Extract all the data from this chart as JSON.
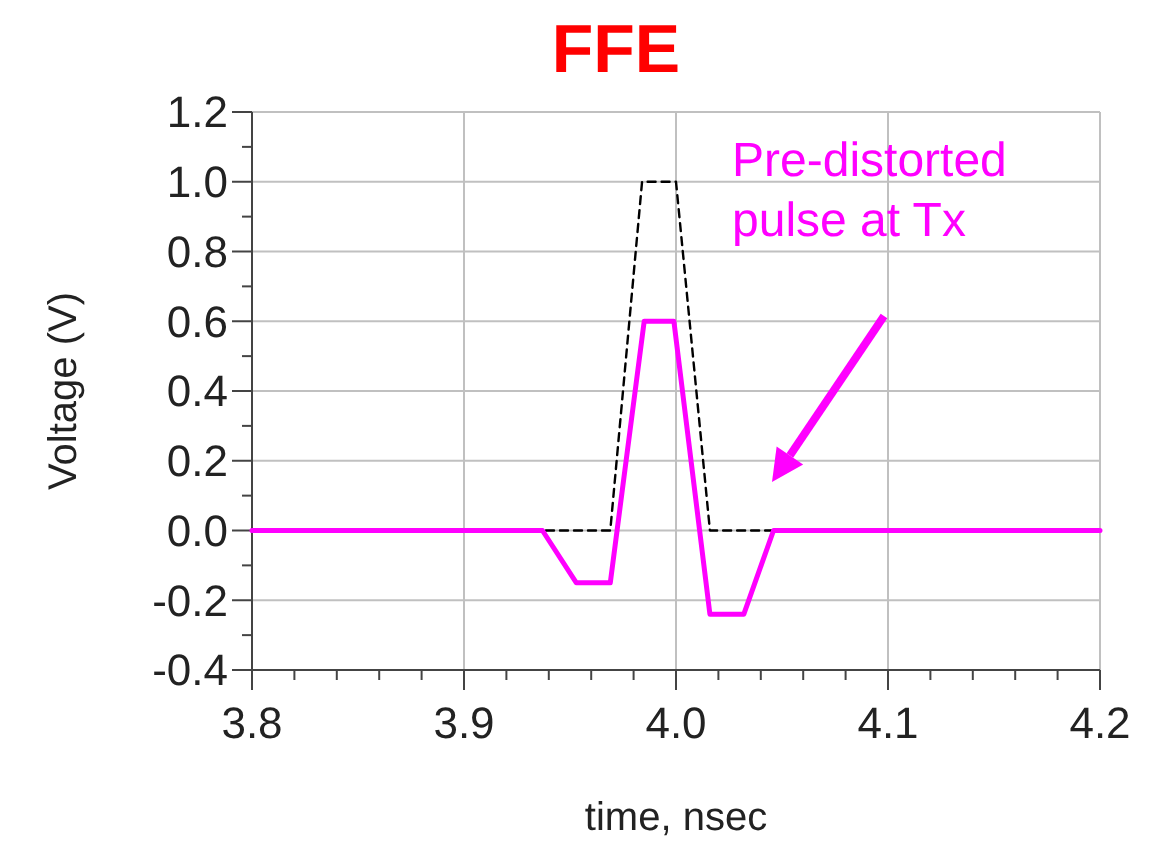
{
  "chart_data": {
    "type": "line",
    "title": "FFE",
    "xlabel": "time, nsec",
    "ylabel": "Voltage (V)",
    "xlim": [
      3.8,
      4.2
    ],
    "xticks": [
      {
        "value": 3.8,
        "label": "3.8"
      },
      {
        "value": 3.9,
        "label": "3.9"
      },
      {
        "value": 4,
        "label": "4.0"
      },
      {
        "value": 4.1,
        "label": "4.1"
      },
      {
        "value": 4.2,
        "label": "4.2"
      }
    ],
    "ylim": [
      -0.4,
      1.2
    ],
    "yticks": [
      {
        "value": -0.4,
        "label": "-0.4"
      },
      {
        "value": -0.2,
        "label": "-0.2"
      },
      {
        "value": 0,
        "label": "0.0"
      },
      {
        "value": 0.2,
        "label": "0.2"
      },
      {
        "value": 0.4,
        "label": "0.4"
      },
      {
        "value": 0.6,
        "label": "0.6"
      },
      {
        "value": 0.8,
        "label": "0.8"
      },
      {
        "value": 1,
        "label": "1.0"
      },
      {
        "value": 1.2,
        "label": "1.2"
      }
    ],
    "grid": true,
    "marker": "none",
    "series": [
      {
        "color": "#000000",
        "line_style": "dashed",
        "x": [
          3.8,
          3.969,
          3.984,
          4.0,
          4.016,
          4.2
        ],
        "values": [
          0,
          0,
          1.0,
          1.0,
          0,
          0
        ]
      },
      {
        "color": "#ff00ff",
        "line_style": "solid",
        "x": [
          3.8,
          3.937,
          3.953,
          3.969,
          3.985,
          3.999,
          4.016,
          4.032,
          4.046,
          4.2
        ],
        "values": [
          0,
          0,
          -0.15,
          -0.15,
          0.6,
          0.6,
          -0.24,
          -0.24,
          0,
          0
        ]
      }
    ],
    "annotations": [
      "Pre-distorted pulse at Tx"
    ]
  }
}
